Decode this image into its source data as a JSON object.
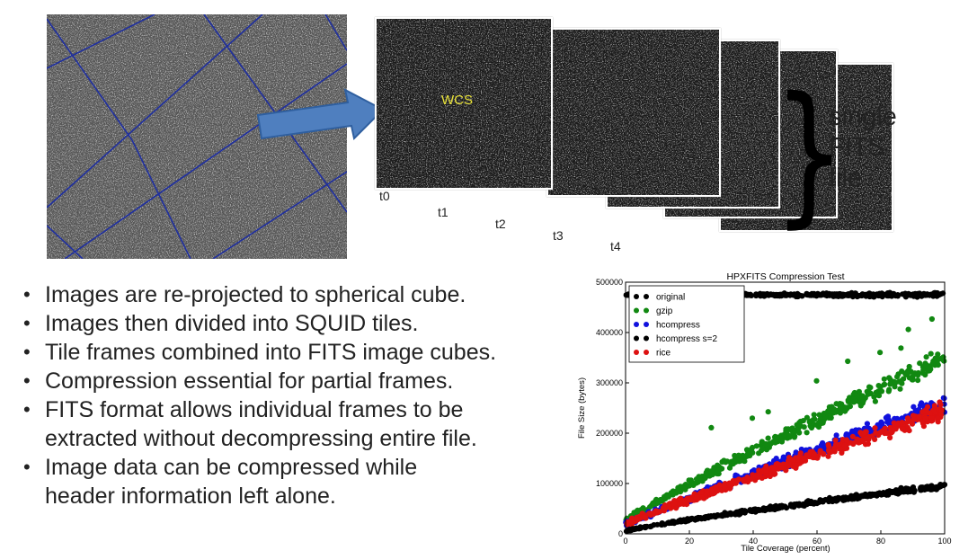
{
  "diagram": {
    "wcs_label": "WCS",
    "frame_labels": [
      "t0",
      "t1",
      "t2",
      "t3",
      "t4"
    ],
    "single_fits_file": [
      "single",
      "FITS",
      "file"
    ]
  },
  "bullets": [
    "Images are re-projected to spherical cube.",
    "Images then divided into SQUID tiles.",
    "Tile frames combined into FITS image cubes.",
    "Compression essential for partial frames.",
    "FITS format allows individual frames to be extracted without decompressing entire file.",
    "Image data can be compressed while header information left alone."
  ],
  "colors": {
    "arrow": "#4f7fbf",
    "grid_line": "#1f2fa0",
    "wcs": "#e8e23a"
  },
  "chart_data": {
    "type": "scatter",
    "title": "HPXFITS Compression Test",
    "xlabel": "Tile Coverage (percent)",
    "ylabel": "File Size (bytes)",
    "xlim": [
      0,
      100
    ],
    "ylim": [
      0,
      500000
    ],
    "xticks": [
      "0",
      "20",
      "40",
      "60",
      "80",
      "100"
    ],
    "yticks": [
      "0",
      "100000",
      "200000",
      "300000",
      "400000",
      "500000"
    ],
    "legend_position": "top-left",
    "series": [
      {
        "name": "original",
        "color": "#000000",
        "start": 475000,
        "end": 475000,
        "noise": 3000
      },
      {
        "name": "gzip",
        "color": "#118811",
        "start": 28000,
        "end": 350000,
        "noise": 14000
      },
      {
        "name": "hcompress",
        "color": "#1111dd",
        "start": 18000,
        "end": 260000,
        "noise": 12000
      },
      {
        "name": "hcompress s=2",
        "color": "#000000",
        "start": 5000,
        "end": 95000,
        "noise": 4000
      },
      {
        "name": "rice",
        "color": "#dd1111",
        "start": 20000,
        "end": 245000,
        "noise": 12000
      }
    ]
  }
}
